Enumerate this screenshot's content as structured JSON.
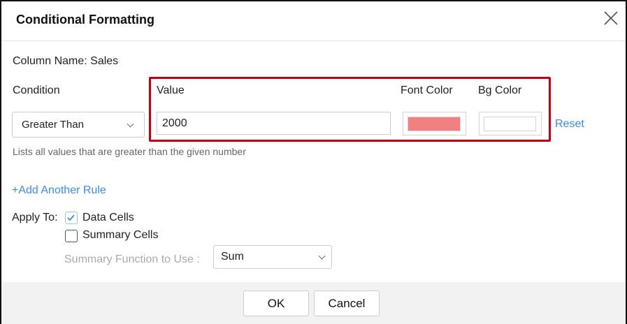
{
  "dialog": {
    "title": "Conditional Formatting",
    "close_icon": "close-icon"
  },
  "column": {
    "label": "Column Name:",
    "value": "Sales"
  },
  "rule": {
    "condition_label": "Condition",
    "condition_value": "Greater Than",
    "value_label": "Value",
    "value": "2000",
    "font_color_label": "Font Color",
    "font_color": "#f28080",
    "bg_color_label": "Bg Color",
    "bg_color": "#ffffff",
    "reset_label": "Reset",
    "help_text": "Lists all values that are greater than the given number",
    "highlight_color": "#c00012"
  },
  "add_rule_label": "+Add Another Rule",
  "apply_to": {
    "label": "Apply To:",
    "options": [
      {
        "label": "Data Cells",
        "checked": true
      },
      {
        "label": "Summary Cells",
        "checked": false
      }
    ],
    "summary_function_label": "Summary Function to Use :",
    "summary_function_value": "Sum"
  },
  "footer": {
    "ok_label": "OK",
    "cancel_label": "Cancel"
  },
  "accent": "#3c8ce7"
}
